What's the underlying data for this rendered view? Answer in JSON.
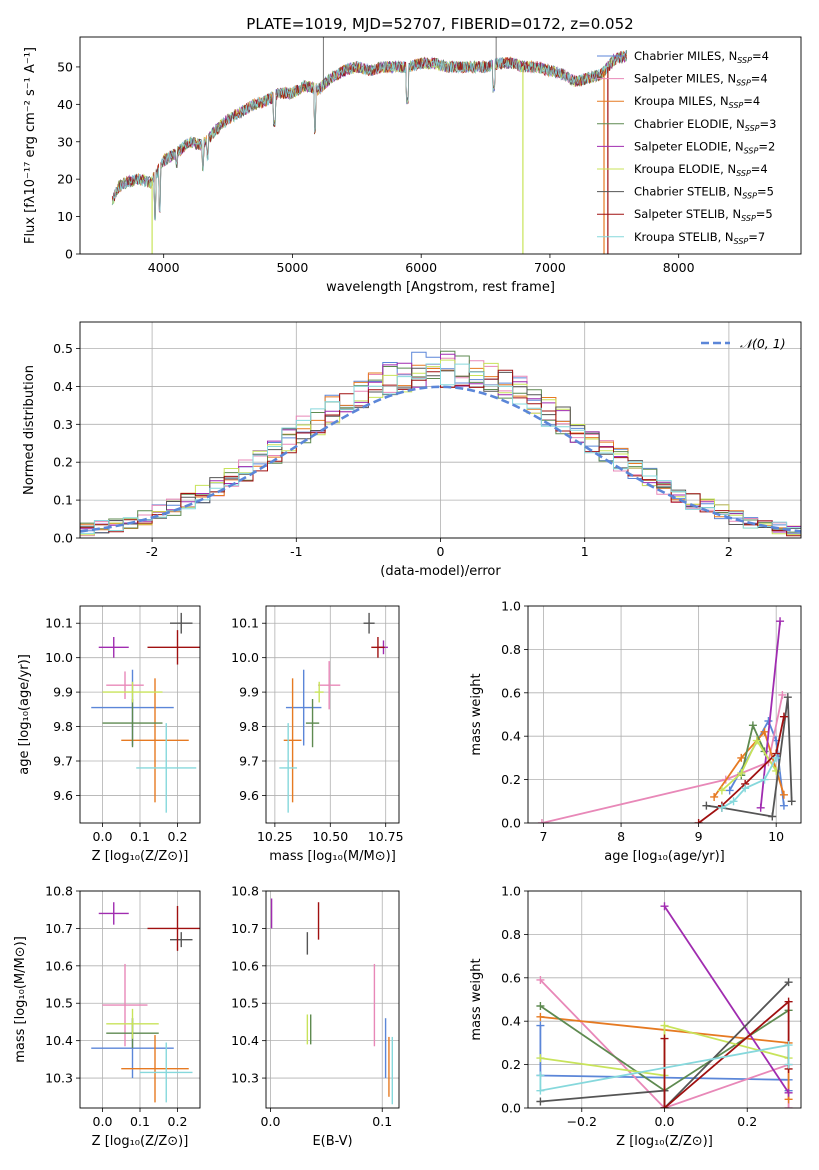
{
  "figure_title": "PLATE=1019, MJD=52707, FIBERID=0172, z=0.052",
  "models": [
    {
      "name": "Chabrier MILES",
      "nssp": "4",
      "color": "#5b86d8"
    },
    {
      "name": "Salpeter MILES",
      "nssp": "4",
      "color": "#e888b8"
    },
    {
      "name": "Kroupa MILES",
      "nssp": "4",
      "color": "#e67a22"
    },
    {
      "name": "Chabrier ELODIE",
      "nssp": "3",
      "color": "#5e8a50"
    },
    {
      "name": "Salpeter ELODIE",
      "nssp": "2",
      "color": "#a02cb0"
    },
    {
      "name": "Kroupa ELODIE",
      "nssp": "4",
      "color": "#c8e35a"
    },
    {
      "name": "Chabrier STELIB",
      "nssp": "5",
      "color": "#555555"
    },
    {
      "name": "Salpeter STELIB",
      "nssp": "5",
      "color": "#a01010"
    },
    {
      "name": "Kroupa STELIB",
      "nssp": "7",
      "color": "#86d8dc"
    }
  ],
  "chart_data": [
    {
      "id": "spectrum",
      "type": "line",
      "xlabel": "wavelength [Angstrom, rest frame]",
      "ylabel": "Flux [fλ10⁻¹⁷ erg cm⁻² s⁻¹ A⁻¹]",
      "xlim": [
        3350,
        8950
      ],
      "ylim": [
        0,
        58
      ],
      "xticks": [
        4000,
        5000,
        6000,
        7000,
        8000
      ],
      "yticks": [
        0,
        10,
        20,
        30,
        40,
        50
      ],
      "continuum": {
        "x": [
          3600,
          3650,
          3700,
          3800,
          3900,
          3950,
          4000,
          4100,
          4200,
          4300,
          4400,
          4500,
          4600,
          4700,
          4800,
          4900,
          5000,
          5100,
          5200,
          5300,
          5400,
          5500,
          5600,
          5700,
          5800,
          5900,
          6000,
          6100,
          6200,
          6300,
          6400,
          6500,
          6600,
          6700,
          6800,
          6900,
          7000,
          7100,
          7200,
          7300,
          7400,
          7500,
          7600
        ],
        "y": [
          14,
          18,
          19,
          20,
          19,
          22,
          25,
          27,
          30,
          29,
          33,
          36,
          38,
          40,
          41,
          43,
          43,
          45,
          44,
          47,
          49,
          50,
          49,
          50,
          50,
          50,
          51,
          51,
          50,
          50,
          50,
          50,
          51,
          51,
          50,
          50,
          49,
          48,
          46,
          47,
          48,
          52,
          53
        ]
      },
      "absorption_features": [
        {
          "x": 3933,
          "y": 9
        },
        {
          "x": 3968,
          "y": 11
        },
        {
          "x": 4101,
          "y": 23
        },
        {
          "x": 4304,
          "y": 22
        },
        {
          "x": 4340,
          "y": 25
        },
        {
          "x": 4861,
          "y": 34
        },
        {
          "x": 5175,
          "y": 32
        },
        {
          "x": 5892,
          "y": 40
        },
        {
          "x": 6563,
          "y": 43
        }
      ],
      "emission_features": [
        {
          "x": 5240,
          "y": 58
        },
        {
          "x": 6582,
          "y": 58
        }
      ],
      "drop_outs": [
        {
          "x": 3910,
          "model": 5
        },
        {
          "x": 6790,
          "model": 5
        },
        {
          "x": 7420,
          "model": 2
        },
        {
          "x": 7450,
          "model": 7
        }
      ],
      "legend": "upper right"
    },
    {
      "id": "residual_hist",
      "type": "histogram",
      "xlabel": "(data-model)/error",
      "ylabel": "Normed distribution",
      "xlim": [
        -2.5,
        2.5
      ],
      "ylim": [
        0,
        0.57
      ],
      "xticks": [
        -2,
        -1,
        0,
        1,
        2
      ],
      "yticks": [
        0.0,
        0.1,
        0.2,
        0.3,
        0.4,
        0.5
      ],
      "bin_edges_start": -2.5,
      "bin_width": 0.1,
      "reference": {
        "name": "𝒩(0, 1)",
        "style": "dashed"
      },
      "legend": "upper right"
    },
    {
      "id": "age_vs_Z",
      "type": "errorbar",
      "xlabel": "Z [log₁₀(Z/Z⊙)]",
      "ylabel": "age  [log₁₀(age/yr)]",
      "xlim": [
        -0.06,
        0.26
      ],
      "ylim": [
        9.52,
        10.15
      ],
      "xticks": [
        0.0,
        0.1,
        0.2
      ],
      "xticklabels": [
        "0.0",
        "0.1",
        "0.2"
      ],
      "yticks": [
        9.6,
        9.7,
        9.8,
        9.9,
        10.0,
        10.1
      ],
      "points": [
        {
          "m": 0,
          "x": 0.08,
          "xerr": 0.11,
          "y": 9.855,
          "yerr": 0.11
        },
        {
          "m": 1,
          "x": 0.06,
          "xerr": 0.05,
          "y": 9.92,
          "yerr": 0.04
        },
        {
          "m": 2,
          "x": 0.14,
          "xerr": 0.09,
          "y": 9.76,
          "yerr": 0.18
        },
        {
          "m": 3,
          "x": 0.08,
          "xerr": 0.08,
          "y": 9.81,
          "yerr": 0.07
        },
        {
          "m": 4,
          "x": 0.03,
          "xerr": 0.04,
          "y": 10.03,
          "yerr": 0.03
        },
        {
          "m": 5,
          "x": 0.08,
          "xerr": 0.08,
          "y": 9.9,
          "yerr": 0.03
        },
        {
          "m": 6,
          "x": 0.21,
          "xerr": 0.03,
          "y": 10.1,
          "yerr": 0.03
        },
        {
          "m": 7,
          "x": 0.2,
          "xerr": 0.08,
          "y": 10.03,
          "yerr": 0.05
        },
        {
          "m": 8,
          "x": 0.17,
          "xerr": 0.08,
          "y": 9.68,
          "yerr": 0.13
        }
      ]
    },
    {
      "id": "age_vs_mass",
      "type": "errorbar",
      "xlabel": "mass [log₁₀(M/M⊙)]",
      "ylabel": "",
      "xlim": [
        10.21,
        10.81
      ],
      "ylim": [
        9.52,
        10.15
      ],
      "xticks": [
        10.25,
        10.5,
        10.75
      ],
      "xticklabels": [
        "10.25",
        "10.50",
        "10.75"
      ],
      "yticks": [
        9.6,
        9.7,
        9.8,
        9.9,
        10.0,
        10.1
      ],
      "points": [
        {
          "m": 0,
          "x": 10.38,
          "xerr": 0.08,
          "y": 9.855,
          "yerr": 0.11
        },
        {
          "m": 1,
          "x": 10.495,
          "xerr": 0.05,
          "y": 9.92,
          "yerr": 0.07
        },
        {
          "m": 2,
          "x": 10.33,
          "xerr": 0.04,
          "y": 9.76,
          "yerr": 0.18
        },
        {
          "m": 3,
          "x": 10.42,
          "xerr": 0.03,
          "y": 9.81,
          "yerr": 0.07
        },
        {
          "m": 4,
          "x": 10.74,
          "xerr": 0.02,
          "y": 10.03,
          "yerr": 0.02
        },
        {
          "m": 5,
          "x": 10.45,
          "xerr": 0.02,
          "y": 9.9,
          "yerr": 0.03
        },
        {
          "m": 6,
          "x": 10.675,
          "xerr": 0.025,
          "y": 10.1,
          "yerr": 0.03
        },
        {
          "m": 7,
          "x": 10.715,
          "xerr": 0.03,
          "y": 10.03,
          "yerr": 0.03
        },
        {
          "m": 8,
          "x": 10.31,
          "xerr": 0.04,
          "y": 9.68,
          "yerr": 0.13
        }
      ]
    },
    {
      "id": "mass_weight_vs_age",
      "type": "line",
      "xlabel": "age  [log₁₀(age/yr)]",
      "ylabel": "mass weight",
      "xlim": [
        6.8,
        10.32
      ],
      "ylim": [
        0,
        1
      ],
      "xticks": [
        7,
        8,
        9,
        10
      ],
      "yticks": [
        0.0,
        0.2,
        0.4,
        0.6,
        0.8,
        1.0
      ],
      "series": [
        {
          "m": 0,
          "x": [
            9.4,
            9.9,
            10.0,
            10.1
          ],
          "y": [
            0.15,
            0.47,
            0.38,
            0.08
          ]
        },
        {
          "m": 1,
          "x": [
            6.98,
            9.35,
            9.9,
            10.08
          ],
          "y": [
            0.0,
            0.2,
            0.28,
            0.59
          ]
        },
        {
          "m": 2,
          "x": [
            9.2,
            9.55,
            9.85,
            10.1
          ],
          "y": [
            0.12,
            0.3,
            0.42,
            0.13
          ]
        },
        {
          "m": 3,
          "x": [
            9.55,
            9.7,
            9.85
          ],
          "y": [
            0.22,
            0.45,
            0.33
          ]
        },
        {
          "m": 4,
          "x": [
            9.8,
            10.05
          ],
          "y": [
            0.07,
            0.93
          ]
        },
        {
          "m": 5,
          "x": [
            9.3,
            9.55,
            9.75,
            10.0
          ],
          "y": [
            0.15,
            0.23,
            0.38,
            0.24
          ]
        },
        {
          "m": 6,
          "x": [
            9.1,
            9.3,
            9.95,
            10.15,
            10.2
          ],
          "y": [
            0.08,
            0.07,
            0.03,
            0.58,
            0.1
          ]
        },
        {
          "m": 7,
          "x": [
            9.0,
            9.3,
            9.6,
            10.0,
            10.1
          ],
          "y": [
            0.0,
            0.08,
            0.18,
            0.32,
            0.49
          ]
        },
        {
          "m": 8,
          "x": [
            9.3,
            9.45,
            9.6,
            9.85,
            10.0
          ],
          "y": [
            0.07,
            0.1,
            0.16,
            0.2,
            0.3
          ]
        }
      ]
    },
    {
      "id": "mass_vs_Z",
      "type": "errorbar",
      "xlabel": "Z [log₁₀(Z/Z⊙)]",
      "ylabel": "mass [log₁₀(M/M⊙)]",
      "xlim": [
        -0.06,
        0.26
      ],
      "ylim": [
        10.22,
        10.8
      ],
      "xticks": [
        0.0,
        0.1,
        0.2
      ],
      "xticklabels": [
        "0.0",
        "0.1",
        "0.2"
      ],
      "yticks": [
        10.3,
        10.4,
        10.5,
        10.6,
        10.7,
        10.8
      ],
      "points": [
        {
          "m": 0,
          "x": 0.08,
          "xerr": 0.11,
          "y": 10.38,
          "yerr": 0.08
        },
        {
          "m": 1,
          "x": 0.06,
          "xerr": 0.06,
          "y": 10.495,
          "yerr": 0.11
        },
        {
          "m": 2,
          "x": 0.14,
          "xerr": 0.09,
          "y": 10.325,
          "yerr": 0.09
        },
        {
          "m": 3,
          "x": 0.08,
          "xerr": 0.07,
          "y": 10.42,
          "yerr": 0.04
        },
        {
          "m": 4,
          "x": 0.03,
          "xerr": 0.04,
          "y": 10.74,
          "yerr": 0.03
        },
        {
          "m": 5,
          "x": 0.08,
          "xerr": 0.07,
          "y": 10.445,
          "yerr": 0.04
        },
        {
          "m": 6,
          "x": 0.21,
          "xerr": 0.03,
          "y": 10.67,
          "yerr": 0.02
        },
        {
          "m": 7,
          "x": 0.2,
          "xerr": 0.08,
          "y": 10.7,
          "yerr": 0.06
        },
        {
          "m": 8,
          "x": 0.17,
          "xerr": 0.07,
          "y": 10.315,
          "yerr": 0.08
        }
      ]
    },
    {
      "id": "mass_vs_ebv",
      "type": "errorbar",
      "xlabel": "E(B-V)",
      "ylabel": "",
      "xlim": [
        -0.004,
        0.115
      ],
      "ylim": [
        10.22,
        10.8
      ],
      "xticks": [
        0.0,
        0.1
      ],
      "xticklabels": [
        "0.0",
        "0.1"
      ],
      "yticks": [
        10.3,
        10.4,
        10.5,
        10.6,
        10.7,
        10.8
      ],
      "points": [
        {
          "m": 0,
          "x": 0.103,
          "xerr": 0,
          "y": 10.38,
          "yerr": 0.08
        },
        {
          "m": 1,
          "x": 0.093,
          "xerr": 0,
          "y": 10.495,
          "yerr": 0.11
        },
        {
          "m": 2,
          "x": 0.106,
          "xerr": 0,
          "y": 10.33,
          "yerr": 0.08
        },
        {
          "m": 3,
          "x": 0.036,
          "xerr": 0,
          "y": 10.43,
          "yerr": 0.04
        },
        {
          "m": 4,
          "x": 0.001,
          "xerr": 0,
          "y": 10.74,
          "yerr": 0.04
        },
        {
          "m": 5,
          "x": 0.033,
          "xerr": 0,
          "y": 10.43,
          "yerr": 0.04
        },
        {
          "m": 6,
          "x": 0.033,
          "xerr": 0,
          "y": 10.66,
          "yerr": 0.03
        },
        {
          "m": 7,
          "x": 0.043,
          "xerr": 0,
          "y": 10.72,
          "yerr": 0.05
        },
        {
          "m": 8,
          "x": 0.109,
          "xerr": 0,
          "y": 10.32,
          "yerr": 0.09
        }
      ]
    },
    {
      "id": "mass_weight_vs_Z",
      "type": "line",
      "xlabel": "Z [log₁₀(Z/Z⊙)]",
      "ylabel": "mass weight",
      "xlim": [
        -0.33,
        0.33
      ],
      "ylim": [
        0,
        1
      ],
      "xticks": [
        -0.2,
        0.0,
        0.2
      ],
      "xticklabels": [
        "−0.2",
        "0.0",
        "0.2"
      ],
      "yticks": [
        0.0,
        0.2,
        0.4,
        0.6,
        0.8,
        1.0
      ],
      "series": [
        {
          "m": 0,
          "x": [
            -0.3,
            -0.3,
            0.3,
            0.3
          ],
          "y": [
            0.38,
            0.15,
            0.13,
            0.08
          ]
        },
        {
          "m": 1,
          "x": [
            -0.3,
            0.0,
            0.3,
            0.3
          ],
          "y": [
            0.59,
            0.0,
            0.2,
            0.0
          ]
        },
        {
          "m": 2,
          "x": [
            -0.3,
            0.3,
            0.3
          ],
          "y": [
            0.42,
            0.3,
            0.04
          ]
        },
        {
          "m": 3,
          "x": [
            -0.3,
            0.0,
            0.3
          ],
          "y": [
            0.47,
            0.08,
            0.45
          ]
        },
        {
          "m": 4,
          "x": [
            0.0,
            0.3
          ],
          "y": [
            0.93,
            0.07
          ]
        },
        {
          "m": 5,
          "x": [
            -0.3,
            0.0,
            0.0,
            0.3
          ],
          "y": [
            0.23,
            0.15,
            0.38,
            0.23
          ]
        },
        {
          "m": 6,
          "x": [
            -0.3,
            0.0,
            0.0,
            0.3
          ],
          "y": [
            0.03,
            0.08,
            0.0,
            0.58
          ]
        },
        {
          "m": 7,
          "x": [
            0.0,
            0.0,
            0.3,
            0.3
          ],
          "y": [
            0.32,
            0.0,
            0.49,
            0.18
          ]
        },
        {
          "m": 8,
          "x": [
            -0.3,
            -0.3,
            0.3,
            0.3
          ],
          "y": [
            0.15,
            0.08,
            0.29,
            0.2
          ]
        }
      ]
    }
  ]
}
